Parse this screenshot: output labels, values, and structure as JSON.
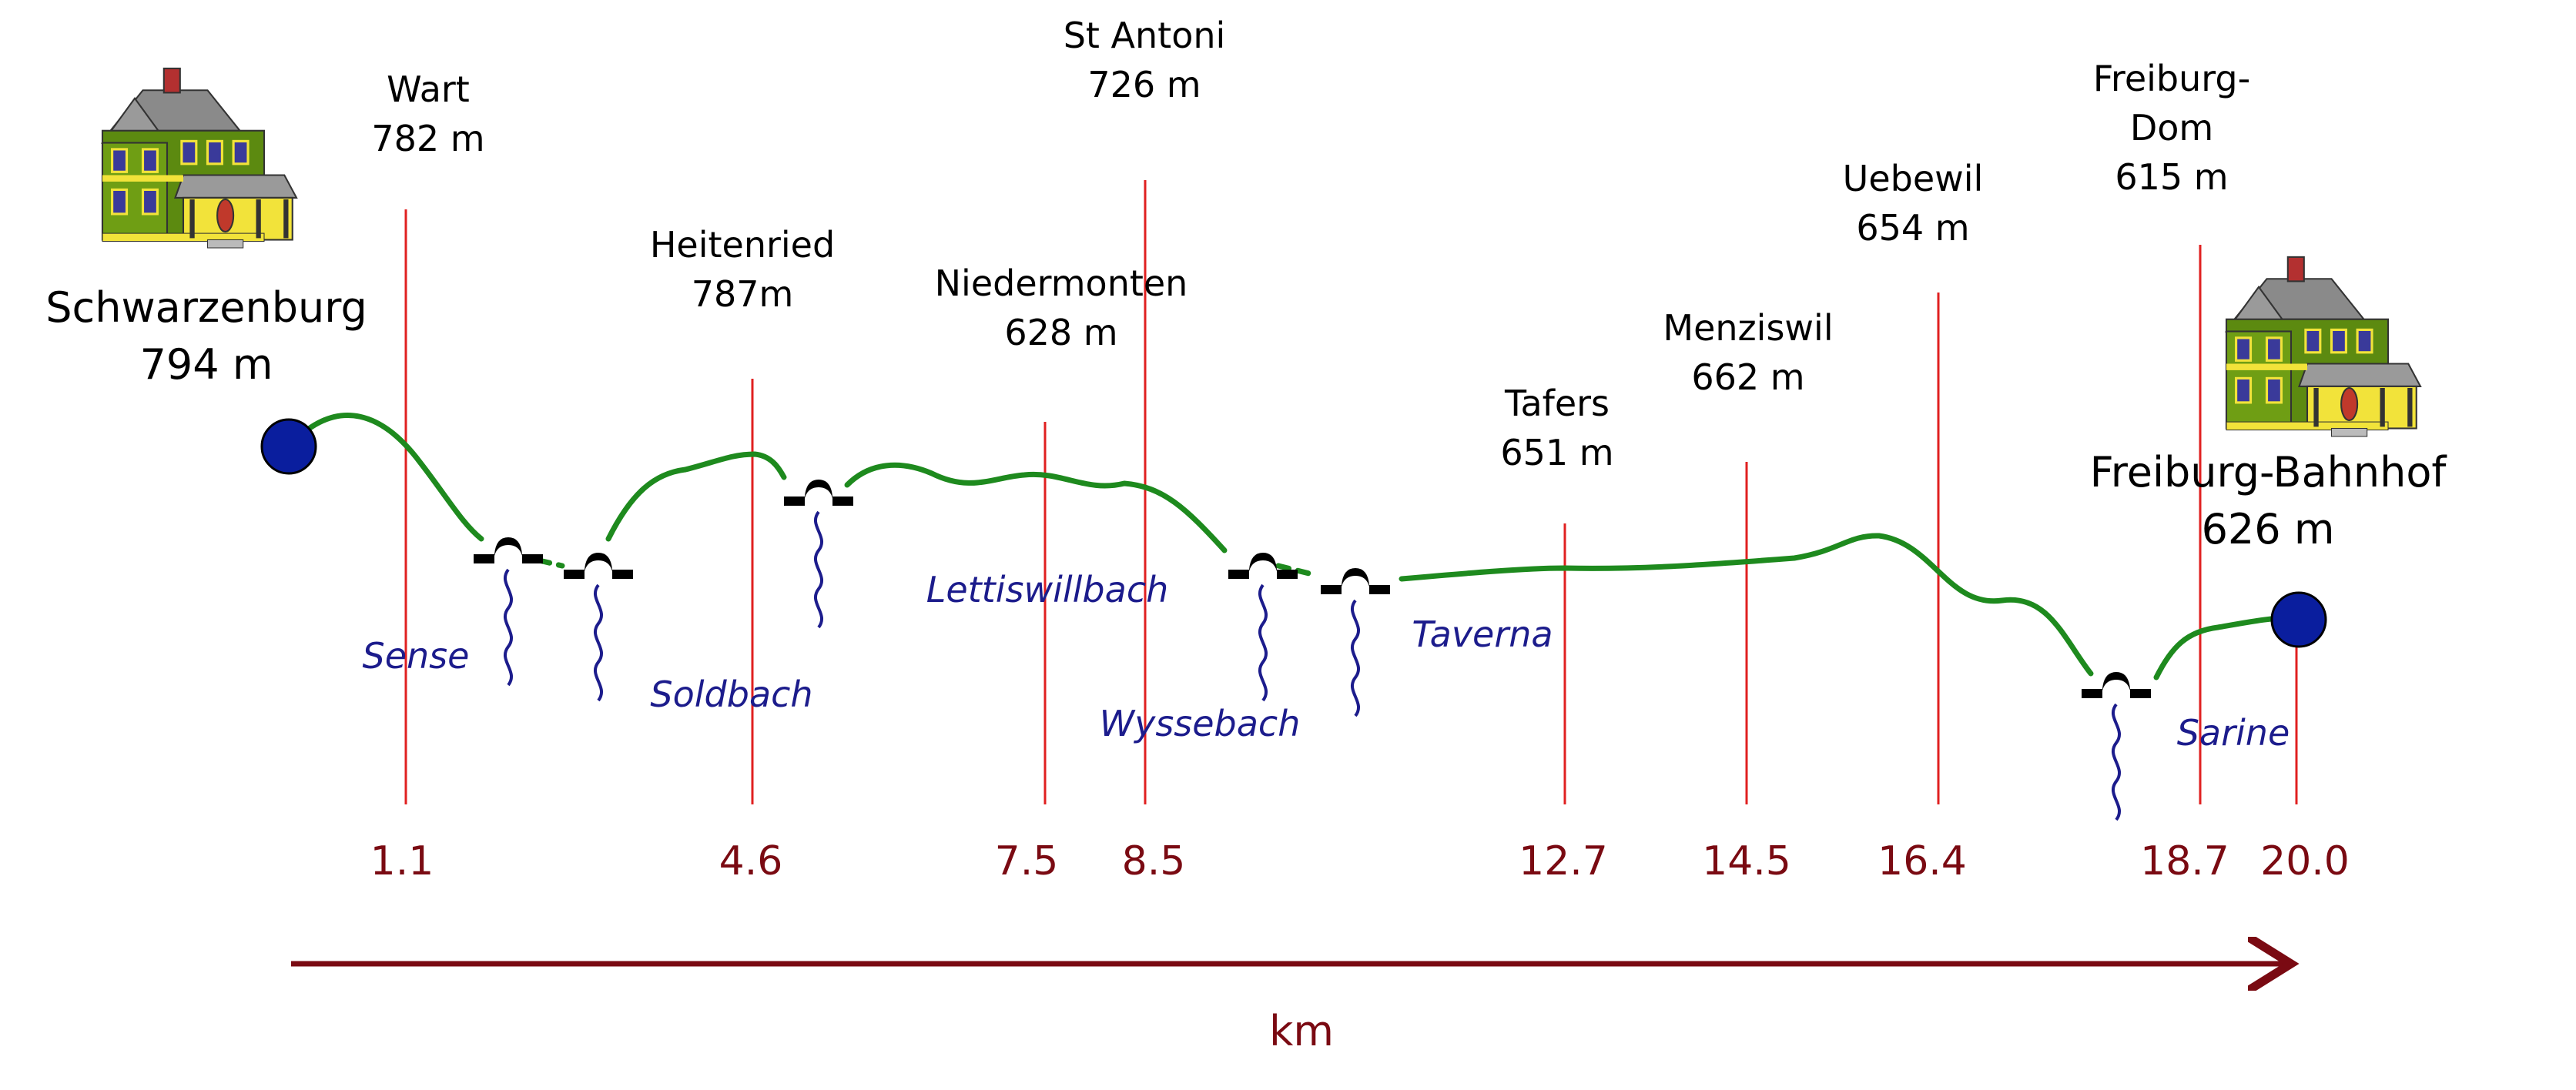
{
  "start": {
    "name": "Schwarzenburg",
    "elevation": "794 m"
  },
  "end": {
    "name": "Freiburg-Bahnhof",
    "elevation": "626 m"
  },
  "waypoints": [
    {
      "name_lines": [
        "Wart"
      ],
      "elevation": "782 m",
      "km": "1.1"
    },
    {
      "name_lines": [
        "Heitenried"
      ],
      "elevation": "787m",
      "km": "4.6"
    },
    {
      "name_lines": [
        "Niedermonten"
      ],
      "elevation": "628 m",
      "km": "7.5"
    },
    {
      "name_lines": [
        "St Antoni"
      ],
      "elevation": "726 m",
      "km": "8.5"
    },
    {
      "name_lines": [
        "Tafers"
      ],
      "elevation": "651 m",
      "km": "12.7"
    },
    {
      "name_lines": [
        "Menziswil"
      ],
      "elevation": "662 m",
      "km": "14.5"
    },
    {
      "name_lines": [
        "Uebewil"
      ],
      "elevation": "654 m",
      "km": "16.4"
    },
    {
      "name_lines": [
        "Freiburg-",
        "Dom"
      ],
      "elevation": "615 m",
      "km": "18.7"
    }
  ],
  "end_km": "20.0",
  "rivers": [
    "Sense",
    "Soldbach",
    "Lettiswillbach",
    "Wyssebach",
    "Taverna",
    "Sarine"
  ],
  "axis_label": "km",
  "colors": {
    "route": "#1e8a1e",
    "marker_line": "#e02020",
    "km_text": "#7a0a12",
    "river": "#1c1c8c",
    "endpoint": "#0a1e9e"
  }
}
